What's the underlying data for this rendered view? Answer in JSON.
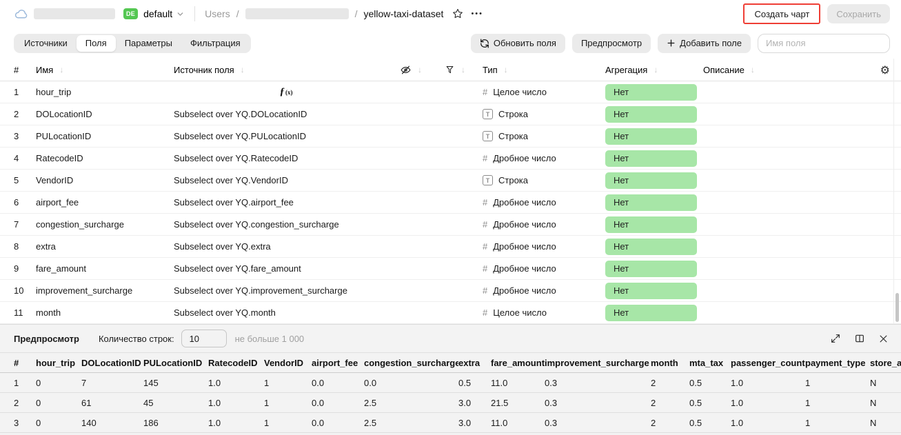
{
  "topbar": {
    "org_badge": "DE",
    "folder": "default",
    "breadcrumb_root": "Users",
    "breadcrumb_separator": "/",
    "breadcrumb_dataset": "yellow-taxi-dataset",
    "more_menu": "•••",
    "create_chart_label": "Создать чарт",
    "save_label": "Сохранить"
  },
  "toolbar": {
    "tabs": [
      {
        "label": "Источники",
        "active": false
      },
      {
        "label": "Поля",
        "active": true
      },
      {
        "label": "Параметры",
        "active": false
      },
      {
        "label": "Фильтрация",
        "active": false
      }
    ],
    "refresh_fields_label": "Обновить поля",
    "preview_label": "Предпросмотр",
    "add_field_label": "Добавить поле",
    "add_field_plus": "+",
    "field_name_placeholder": "Имя поля"
  },
  "fields_table": {
    "headers": {
      "num": "#",
      "name": "Имя",
      "source": "Источник поля",
      "type": "Тип",
      "aggregation": "Агрегация",
      "description": "Описание"
    },
    "sort_arrow": "↓",
    "settings_gear": "⚙",
    "rows": [
      {
        "num": "1",
        "name": "hour_trip",
        "source": "",
        "formula": true,
        "type": "Целое число",
        "type_kind": "integer",
        "aggregation": "Нет",
        "description": ""
      },
      {
        "num": "2",
        "name": "DOLocationID",
        "source": "Subselect over YQ.DOLocationID",
        "formula": false,
        "type": "Строка",
        "type_kind": "string",
        "aggregation": "Нет",
        "description": ""
      },
      {
        "num": "3",
        "name": "PULocationID",
        "source": "Subselect over YQ.PULocationID",
        "formula": false,
        "type": "Строка",
        "type_kind": "string",
        "aggregation": "Нет",
        "description": ""
      },
      {
        "num": "4",
        "name": "RatecodeID",
        "source": "Subselect over YQ.RatecodeID",
        "formula": false,
        "type": "Дробное число",
        "type_kind": "float",
        "aggregation": "Нет",
        "description": ""
      },
      {
        "num": "5",
        "name": "VendorID",
        "source": "Subselect over YQ.VendorID",
        "formula": false,
        "type": "Строка",
        "type_kind": "string",
        "aggregation": "Нет",
        "description": ""
      },
      {
        "num": "6",
        "name": "airport_fee",
        "source": "Subselect over YQ.airport_fee",
        "formula": false,
        "type": "Дробное число",
        "type_kind": "float",
        "aggregation": "Нет",
        "description": ""
      },
      {
        "num": "7",
        "name": "congestion_surcharge",
        "source": "Subselect over YQ.congestion_surcharge",
        "formula": false,
        "type": "Дробное число",
        "type_kind": "float",
        "aggregation": "Нет",
        "description": ""
      },
      {
        "num": "8",
        "name": "extra",
        "source": "Subselect over YQ.extra",
        "formula": false,
        "type": "Дробное число",
        "type_kind": "float",
        "aggregation": "Нет",
        "description": ""
      },
      {
        "num": "9",
        "name": "fare_amount",
        "source": "Subselect over YQ.fare_amount",
        "formula": false,
        "type": "Дробное число",
        "type_kind": "float",
        "aggregation": "Нет",
        "description": ""
      },
      {
        "num": "10",
        "name": "improvement_surcharge",
        "source": "Subselect over YQ.improvement_surcharge",
        "formula": false,
        "type": "Дробное число",
        "type_kind": "float",
        "aggregation": "Нет",
        "description": ""
      },
      {
        "num": "11",
        "name": "month",
        "source": "Subselect over YQ.month",
        "formula": false,
        "type": "Целое число",
        "type_kind": "integer",
        "aggregation": "Нет",
        "description": ""
      }
    ]
  },
  "preview_panel": {
    "title": "Предпросмотр",
    "row_count_label": "Количество строк:",
    "row_count_value": "10",
    "row_count_hint": "не больше 1 000",
    "table": {
      "headers": [
        "#",
        "hour_trip",
        "DOLocationID",
        "PULocationID",
        "RatecodeID",
        "VendorID",
        "airport_fee",
        "congestion_surcharge",
        "extra",
        "fare_amount",
        "improvement_surcharge",
        "month",
        "mta_tax",
        "passenger_count",
        "payment_type",
        "store_and_fwd_flag"
      ],
      "rows": [
        [
          "1",
          "0",
          "7",
          "145",
          "1.0",
          "1",
          "0.0",
          "0.0",
          "0.5",
          "11.0",
          "0.3",
          "2",
          "0.5",
          "1.0",
          "1",
          "N"
        ],
        [
          "2",
          "0",
          "61",
          "45",
          "1.0",
          "1",
          "0.0",
          "2.5",
          "3.0",
          "21.5",
          "0.3",
          "2",
          "0.5",
          "1.0",
          "1",
          "N"
        ],
        [
          "3",
          "0",
          "140",
          "186",
          "1.0",
          "1",
          "0.0",
          "2.5",
          "3.0",
          "11.0",
          "0.3",
          "2",
          "0.5",
          "1.0",
          "1",
          "N"
        ]
      ]
    }
  },
  "colors": {
    "aggregation_badge_bg": "#a7e6a7",
    "org_badge_bg": "#54c752",
    "annotation_highlight": "#ef3e35"
  }
}
